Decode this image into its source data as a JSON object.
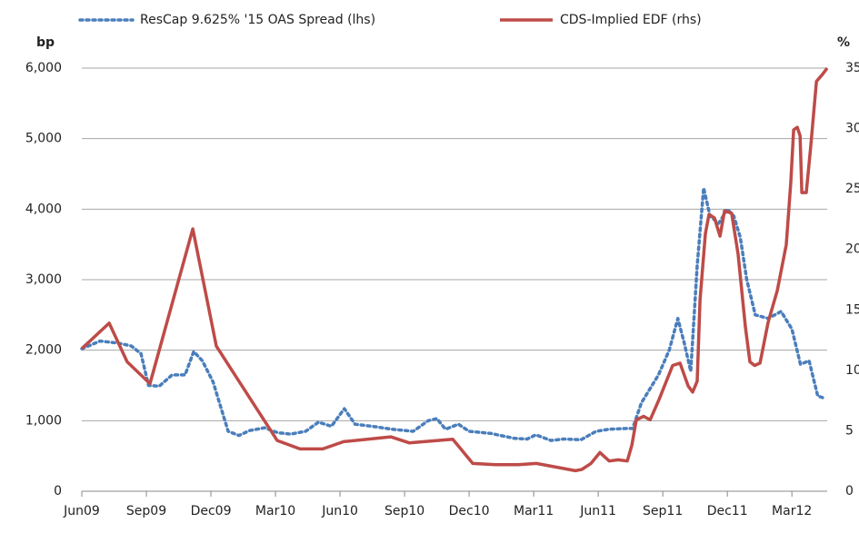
{
  "chart_data": {
    "type": "line",
    "y_label": "bp",
    "y2_label": "%",
    "xlim": [
      0,
      34.64
    ],
    "xticks": [
      {
        "value": 0,
        "label": "Jun09"
      },
      {
        "value": 3,
        "label": "Sep09"
      },
      {
        "value": 6,
        "label": "Dec09"
      },
      {
        "value": 9,
        "label": "Mar10"
      },
      {
        "value": 12,
        "label": "Jun10"
      },
      {
        "value": 15,
        "label": "Sep10"
      },
      {
        "value": 18,
        "label": "Dec10"
      },
      {
        "value": 21,
        "label": "Mar11"
      },
      {
        "value": 24,
        "label": "Jun11"
      },
      {
        "value": 27,
        "label": "Sep11"
      },
      {
        "value": 30,
        "label": "Dec11"
      },
      {
        "value": 33,
        "label": "Mar12"
      }
    ],
    "ylim": [
      0,
      6000
    ],
    "yticks": [
      0,
      {
        "value": 1000,
        "label": "1,000"
      },
      {
        "value": 2000,
        "label": "2,000"
      },
      {
        "value": 3000,
        "label": "3,000"
      },
      {
        "value": 4000,
        "label": "4,000"
      },
      {
        "value": 5000,
        "label": "5,000"
      },
      {
        "value": 6000,
        "label": "6,000"
      }
    ],
    "y2lim": [
      0,
      35
    ],
    "y2ticks": [
      0,
      5,
      10,
      15,
      20,
      25,
      30,
      35
    ],
    "grid": true,
    "series": [
      {
        "name": "ResCap 9.625% '15 OAS Spread (lhs)",
        "color": "#4a7ebb",
        "style": "dotted",
        "axis": "y",
        "x": [
          0,
          0.85,
          1.7,
          2.3,
          2.75,
          3.1,
          3.6,
          4.2,
          4.8,
          5.2,
          5.6,
          6.1,
          6.5,
          6.8,
          7.3,
          7.8,
          8.5,
          9.1,
          9.7,
          10.4,
          11,
          11.6,
          12.2,
          12.7,
          13.5,
          14.4,
          15.4,
          16.1,
          16.5,
          16.9,
          17.5,
          18,
          19,
          20.1,
          20.7,
          21.1,
          21.8,
          22.4,
          23.2,
          23.9,
          24.5,
          25.3,
          25.6,
          26,
          26.4,
          26.8,
          27.3,
          27.7,
          28,
          28.3,
          28.6,
          28.9,
          29.2,
          29.6,
          30,
          30.3,
          30.6,
          30.9,
          31.3,
          31.9,
          32.5,
          33,
          33.4,
          33.8,
          34.2,
          34.5
        ],
        "values": [
          2020,
          2130,
          2100,
          2060,
          1950,
          1500,
          1490,
          1650,
          1650,
          1980,
          1850,
          1550,
          1150,
          850,
          790,
          860,
          900,
          830,
          810,
          850,
          980,
          920,
          1170,
          950,
          920,
          880,
          850,
          1000,
          1030,
          880,
          950,
          850,
          820,
          750,
          740,
          800,
          720,
          740,
          730,
          850,
          880,
          890,
          890,
          1250,
          1450,
          1650,
          2000,
          2450,
          2100,
          1700,
          3200,
          4300,
          3900,
          3800,
          4000,
          3900,
          3600,
          3000,
          2500,
          2450,
          2550,
          2300,
          1800,
          1850,
          1350,
          1320
        ]
      },
      {
        "name": "CDS-Implied EDF (rhs)",
        "color": "#be4b48",
        "style": "solid",
        "axis": "y2",
        "x": [
          0,
          1.27,
          2.11,
          3.17,
          5.16,
          6.25,
          9.08,
          10.14,
          11.2,
          12.17,
          14.36,
          15.21,
          17.24,
          18.17,
          19.22,
          20.28,
          21.12,
          22.94,
          23.24,
          23.66,
          24.08,
          24.51,
          24.93,
          25.35,
          25.56,
          25.77,
          26.11,
          26.41,
          26.83,
          27.46,
          27.8,
          28.18,
          28.39,
          28.6,
          28.73,
          28.98,
          29.15,
          29.4,
          29.66,
          29.87,
          30.2,
          30.5,
          30.84,
          31.05,
          31.27,
          31.52,
          31.9,
          32.32,
          32.74,
          32.95,
          33.08,
          33.25,
          33.38,
          33.46,
          33.67,
          33.88,
          34.14,
          34.43,
          34.64
        ],
        "values": [
          11.8,
          13.9,
          10.7,
          8.9,
          21.7,
          12.0,
          4.2,
          3.5,
          3.5,
          4.1,
          4.5,
          4.0,
          4.3,
          2.3,
          2.2,
          2.2,
          2.3,
          1.7,
          1.8,
          2.3,
          3.2,
          2.5,
          2.6,
          2.5,
          3.8,
          5.9,
          6.2,
          5.9,
          7.6,
          10.4,
          10.6,
          8.7,
          8.2,
          9.1,
          15.8,
          21.3,
          22.9,
          22.6,
          21.1,
          23.2,
          23.0,
          19.6,
          13.6,
          10.7,
          10.4,
          10.6,
          14.0,
          16.6,
          20.4,
          25.6,
          29.9,
          30.1,
          29.4,
          24.7,
          24.7,
          28.6,
          33.9,
          34.5,
          35.0
        ]
      }
    ]
  }
}
